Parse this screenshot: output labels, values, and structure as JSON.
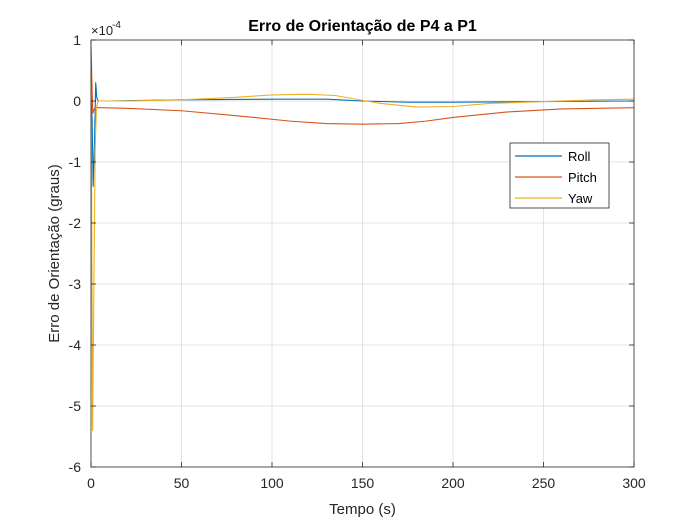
{
  "chart_data": {
    "type": "line",
    "title": "Erro de Orientação de P4 a P1",
    "xlabel": "Tempo (s)",
    "ylabel": "Erro de Orientação (graus)",
    "y_exponent_label": "×10",
    "y_exponent_power": "-4",
    "xlim": [
      0,
      300
    ],
    "ylim": [
      -6,
      1
    ],
    "xticks": [
      0,
      50,
      100,
      150,
      200,
      250,
      300
    ],
    "xtick_labels": [
      "0",
      "50",
      "100",
      "150",
      "200",
      "250",
      "300"
    ],
    "yticks": [
      1,
      0,
      -1,
      -2,
      -3,
      -4,
      -5,
      -6
    ],
    "ytick_labels": [
      "1",
      "0",
      "-1",
      "-2",
      "-3",
      "-4",
      "-5",
      "-6"
    ],
    "grid": true,
    "legend_position": "right, upper middle",
    "series": [
      {
        "name": "Roll",
        "color": "#0072BD",
        "x": [
          0,
          0.6,
          1.2,
          2.0,
          2.6,
          3.2,
          4,
          5,
          10,
          50,
          100,
          130,
          150,
          175,
          200,
          250,
          300
        ],
        "y": [
          0.1,
          -0.3,
          -1.4,
          -0.6,
          0.3,
          0.05,
          0.0,
          0.0,
          0.0,
          0.02,
          0.03,
          0.03,
          0.0,
          -0.02,
          -0.02,
          -0.01,
          0.0
        ]
      },
      {
        "name": "Pitch",
        "color": "#D95319",
        "x": [
          0,
          0.5,
          1.0,
          1.8,
          2.5,
          3.5,
          5,
          20,
          50,
          80,
          110,
          130,
          150,
          170,
          185,
          200,
          230,
          260,
          300
        ],
        "y": [
          0.9,
          0.3,
          -0.2,
          -0.13,
          -0.11,
          -0.11,
          -0.11,
          -0.12,
          -0.16,
          -0.24,
          -0.33,
          -0.37,
          -0.38,
          -0.37,
          -0.33,
          -0.27,
          -0.18,
          -0.13,
          -0.11
        ]
      },
      {
        "name": "Yaw",
        "color": "#EDB120",
        "x": [
          0,
          0.4,
          0.9,
          1.6,
          2.3,
          3.0,
          4,
          6,
          20,
          50,
          80,
          100,
          120,
          135,
          150,
          160,
          180,
          200,
          220,
          250,
          280,
          300
        ],
        "y": [
          0.5,
          -2.0,
          -5.4,
          -3.0,
          -0.8,
          -0.1,
          0.0,
          0.0,
          0.0,
          0.02,
          0.06,
          0.1,
          0.11,
          0.09,
          0.01,
          -0.04,
          -0.1,
          -0.09,
          -0.04,
          -0.01,
          0.02,
          0.03
        ]
      }
    ]
  }
}
